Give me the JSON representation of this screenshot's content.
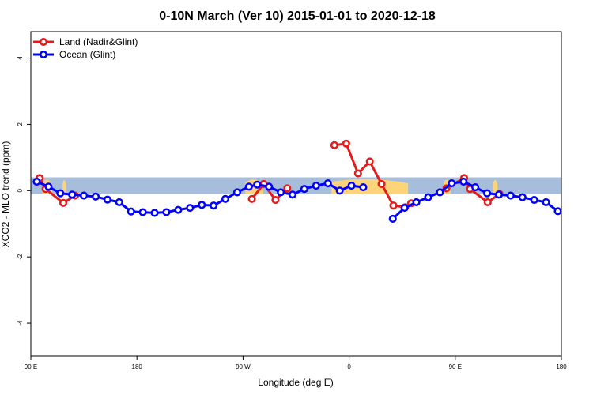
{
  "chart_data": {
    "type": "line",
    "title": "0-10N March (Ver 10)   2015-01-01 to 2020-12-18",
    "xlabel": "Longitude (deg E)",
    "ylabel": "XCO2 - MLO trend (ppm)",
    "xlim": [
      0,
      450
    ],
    "ylim": [
      -5,
      4.8
    ],
    "x_ticks": [
      {
        "value": 0,
        "label": "90 E"
      },
      {
        "value": 90,
        "label": "180"
      },
      {
        "value": 180,
        "label": "90 W"
      },
      {
        "value": 270,
        "label": "0"
      },
      {
        "value": 360,
        "label": "90 E"
      },
      {
        "value": 450,
        "label": "180"
      }
    ],
    "y_ticks": [
      -4,
      -2,
      0,
      2,
      4
    ],
    "legend_position": "top-left",
    "band": {
      "y_min": -0.1,
      "y_max": 0.4,
      "color": "#a6bddb",
      "land_color": "#fcd57a"
    },
    "series": [
      {
        "name": "Land (Nadir&Glint)",
        "color": "#e41a1c",
        "segments": [
          [
            [
              7.5,
              0.38
            ],
            [
              12.5,
              0.05
            ],
            [
              27.5,
              -0.37
            ],
            [
              37.5,
              -0.15
            ]
          ],
          [
            [
              187.5,
              -0.25
            ],
            [
              197.5,
              0.2
            ],
            [
              207.5,
              -0.28
            ],
            [
              217.5,
              0.07
            ]
          ],
          [
            [
              257.5,
              1.37
            ],
            [
              267.5,
              1.42
            ],
            [
              277.5,
              0.52
            ],
            [
              287.5,
              0.88
            ],
            [
              297.5,
              0.2
            ],
            [
              307.5,
              -0.45
            ],
            [
              317.5,
              -0.5
            ],
            [
              322.5,
              -0.38
            ]
          ],
          [
            [
              352.5,
              0.07
            ],
            [
              367.5,
              0.38
            ],
            [
              372.5,
              0.05
            ],
            [
              387.5,
              -0.35
            ],
            [
              397.5,
              -0.1
            ]
          ]
        ]
      },
      {
        "name": "Ocean (Glint)",
        "color": "#0000ff",
        "segments": [
          [
            [
              5,
              0.27
            ],
            [
              15,
              0.12
            ],
            [
              25,
              -0.08
            ],
            [
              35,
              -0.12
            ],
            [
              45,
              -0.15
            ],
            [
              55,
              -0.18
            ],
            [
              65,
              -0.27
            ],
            [
              75,
              -0.35
            ],
            [
              85,
              -0.63
            ],
            [
              95,
              -0.65
            ],
            [
              105,
              -0.67
            ],
            [
              115,
              -0.65
            ],
            [
              125,
              -0.58
            ],
            [
              135,
              -0.52
            ],
            [
              145,
              -0.43
            ],
            [
              155,
              -0.45
            ],
            [
              165,
              -0.25
            ],
            [
              175,
              -0.05
            ],
            [
              185,
              0.12
            ],
            [
              192,
              0.18
            ],
            [
              202,
              0.12
            ],
            [
              212,
              -0.05
            ],
            [
              222,
              -0.12
            ],
            [
              232,
              0.05
            ],
            [
              242,
              0.15
            ],
            [
              252,
              0.22
            ],
            [
              262,
              0.0
            ],
            [
              272,
              0.15
            ],
            [
              282,
              0.1
            ]
          ],
          [
            [
              307,
              -0.85
            ],
            [
              317,
              -0.52
            ],
            [
              327,
              -0.35
            ],
            [
              337,
              -0.2
            ],
            [
              347,
              -0.05
            ],
            [
              357,
              0.22
            ],
            [
              367,
              0.27
            ],
            [
              377,
              0.1
            ],
            [
              387,
              -0.08
            ],
            [
              397,
              -0.12
            ],
            [
              407,
              -0.15
            ],
            [
              417,
              -0.2
            ],
            [
              427,
              -0.28
            ],
            [
              437,
              -0.35
            ],
            [
              447,
              -0.62
            ]
          ]
        ]
      }
    ]
  }
}
